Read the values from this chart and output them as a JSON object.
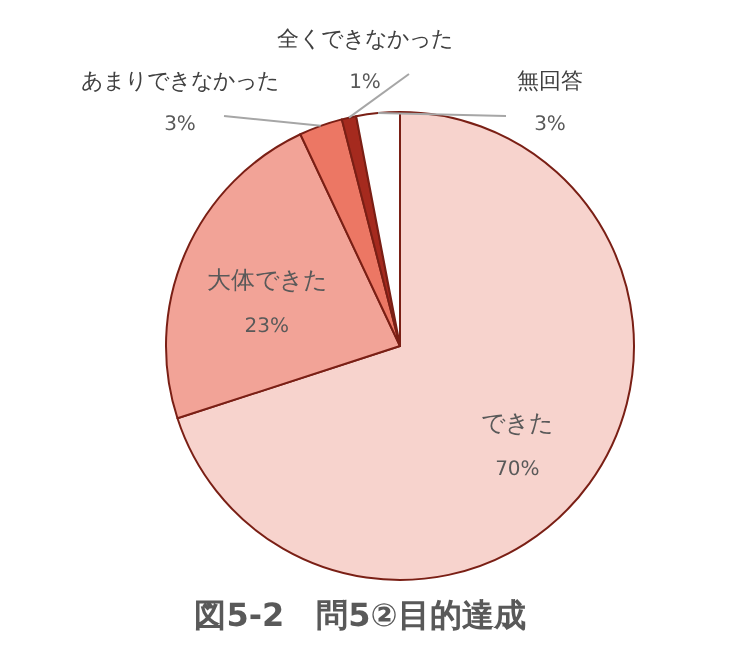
{
  "chart_data": {
    "type": "pie",
    "title": "図5-2　問5②目的達成",
    "categories": [
      "できた",
      "大体できた",
      "あまりできなかった",
      "全くできなかった",
      "無回答"
    ],
    "values": [
      70,
      23,
      3,
      1,
      3
    ],
    "colors": [
      "#f7d3cd",
      "#f2a397",
      "#ec7764",
      "#a52a1e",
      "#ffffff"
    ],
    "value_labels": [
      "70%",
      "23%",
      "3%",
      "1%",
      "3%"
    ]
  }
}
